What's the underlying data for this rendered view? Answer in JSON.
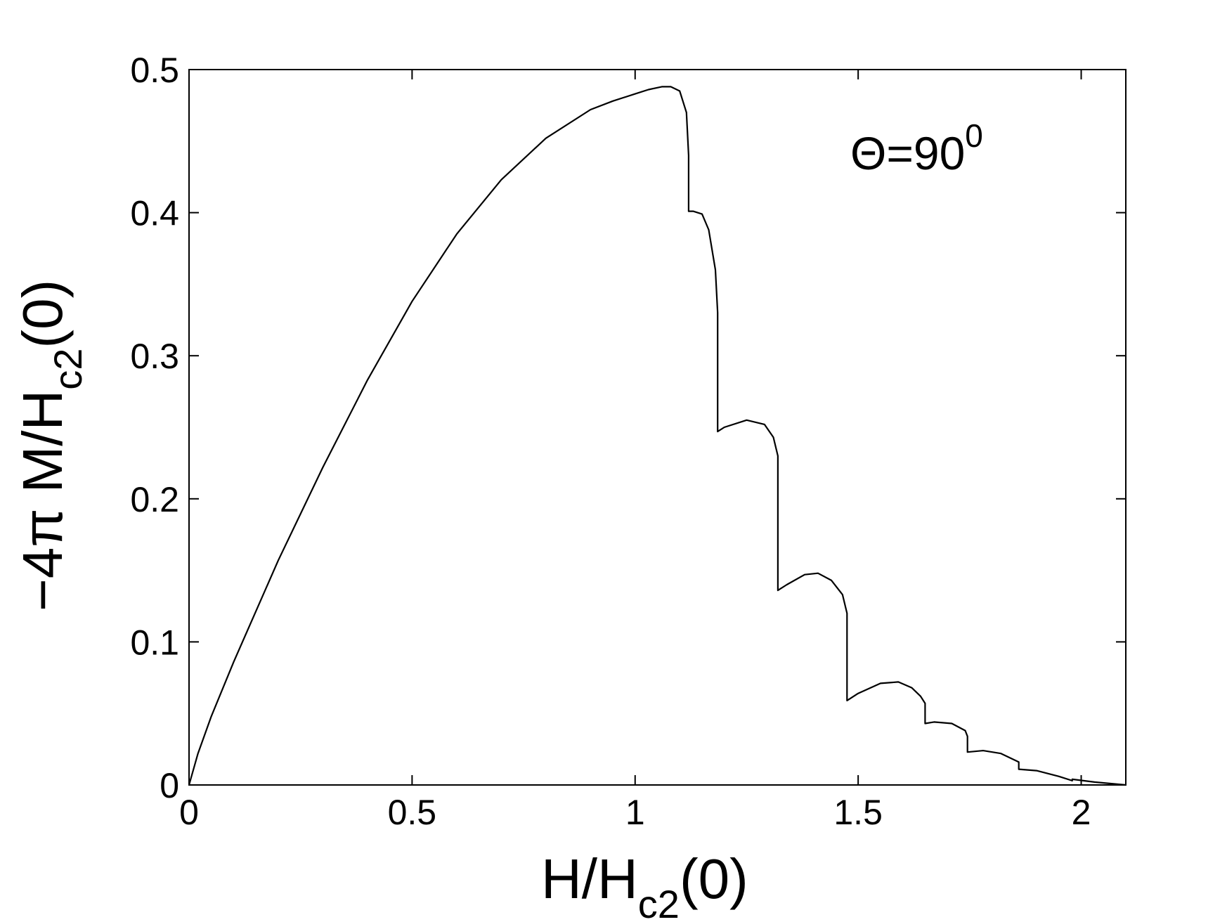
{
  "chart_data": {
    "type": "line",
    "title": "",
    "xlabel": {
      "main": "H/H",
      "sub": "c2",
      "tail": "(0)"
    },
    "ylabel": {
      "main": "−4π M/H",
      "sub": "c2",
      "tail": "(0)"
    },
    "annotation": {
      "main": "Θ=90",
      "sup": "0"
    },
    "xlim": [
      0,
      2.1
    ],
    "ylim": [
      0,
      0.5
    ],
    "xticks": [
      0,
      0.5,
      1,
      1.5,
      2
    ],
    "xtick_labels": [
      "0",
      "0.5",
      "1",
      "1.5",
      "2"
    ],
    "yticks": [
      0,
      0.1,
      0.2,
      0.3,
      0.4,
      0.5
    ],
    "ytick_labels": [
      "0",
      "0.1",
      "0.2",
      "0.3",
      "0.4",
      "0.5"
    ],
    "grid": false,
    "line_color": "#000000",
    "series": [
      {
        "x": [
          0,
          0.02,
          0.05,
          0.1,
          0.2,
          0.3,
          0.4,
          0.5,
          0.6,
          0.7,
          0.8,
          0.9,
          0.95,
          1.0,
          1.03,
          1.06,
          1.08,
          1.1,
          1.115,
          1.12,
          1.12,
          1.13,
          1.15,
          1.165,
          1.18,
          1.185,
          1.185,
          1.2,
          1.25,
          1.29,
          1.31,
          1.32,
          1.32,
          1.34,
          1.38,
          1.41,
          1.44,
          1.465,
          1.475,
          1.475,
          1.5,
          1.55,
          1.59,
          1.62,
          1.64,
          1.65,
          1.65,
          1.67,
          1.71,
          1.74,
          1.745,
          1.745,
          1.78,
          1.82,
          1.86,
          1.86,
          1.9,
          1.95,
          1.98,
          1.98,
          2.03,
          2.1
        ],
        "y": [
          0,
          0.022,
          0.048,
          0.086,
          0.157,
          0.222,
          0.283,
          0.338,
          0.385,
          0.423,
          0.452,
          0.472,
          0.478,
          0.483,
          0.486,
          0.488,
          0.488,
          0.485,
          0.47,
          0.44,
          0.401,
          0.401,
          0.399,
          0.388,
          0.36,
          0.33,
          0.247,
          0.25,
          0.255,
          0.252,
          0.243,
          0.23,
          0.136,
          0.14,
          0.147,
          0.148,
          0.143,
          0.133,
          0.12,
          0.059,
          0.064,
          0.071,
          0.072,
          0.068,
          0.062,
          0.057,
          0.043,
          0.044,
          0.043,
          0.038,
          0.034,
          0.023,
          0.024,
          0.022,
          0.016,
          0.011,
          0.01,
          0.006,
          0.003,
          0.004,
          0.002,
          0
        ]
      }
    ]
  }
}
